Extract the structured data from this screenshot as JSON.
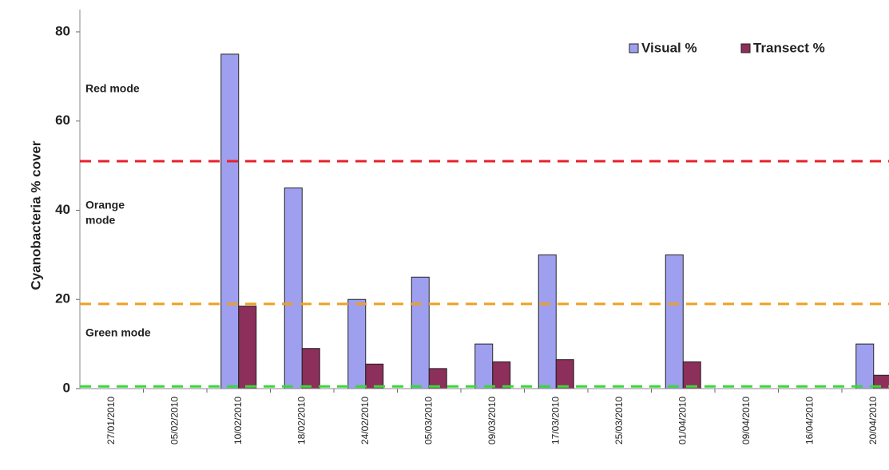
{
  "chart_data": {
    "type": "bar",
    "y_label": "Cyanobacteria % cover",
    "categories": [
      "27/01/2010",
      "05/02/2010",
      "10/02/2010",
      "18/02/2010",
      "24/02/2010",
      "05/03/2010",
      "09/03/2010",
      "17/03/2010",
      "25/03/2010",
      "01/04/2010",
      "09/04/2010",
      "16/04/2010",
      "20/04/2010"
    ],
    "series": [
      {
        "name": "Visual %",
        "color": "#9f9ff0",
        "values": [
          null,
          null,
          75,
          45,
          20,
          25,
          10,
          30,
          null,
          30,
          null,
          null,
          10
        ]
      },
      {
        "name": "Transect %",
        "color": "#8c2f5a",
        "values": [
          null,
          null,
          18.5,
          9,
          5.5,
          4.5,
          6,
          6.5,
          null,
          6,
          null,
          null,
          3
        ]
      }
    ],
    "thresholds": [
      {
        "label": [
          "Red mode"
        ],
        "value": 51,
        "color": "#e8202a"
      },
      {
        "label": [
          "Orange",
          "mode"
        ],
        "value": 19,
        "color": "#f0a020"
      },
      {
        "label": [
          "Green mode"
        ],
        "value": 0.5,
        "color": "#3ad83a"
      }
    ],
    "ylim": [
      0,
      85
    ],
    "yticks": [
      0,
      20,
      40,
      60,
      80
    ],
    "legend": "top-right"
  }
}
